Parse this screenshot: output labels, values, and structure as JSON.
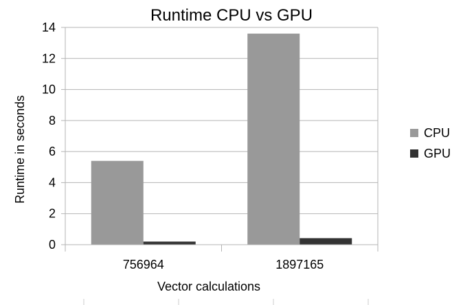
{
  "chart_data": {
    "type": "bar",
    "title": "Runtime CPU vs GPU",
    "xlabel": "Vector calculations",
    "ylabel": "Runtime in seconds",
    "categories": [
      "756964",
      "1897165"
    ],
    "series": [
      {
        "name": "CPU",
        "values": [
          5.4,
          13.6
        ],
        "color": "#999999"
      },
      {
        "name": "GPU",
        "values": [
          0.2,
          0.42
        ],
        "color": "#333333"
      }
    ],
    "ylim": [
      0,
      14
    ],
    "yticks": [
      0,
      2,
      4,
      6,
      8,
      10,
      12,
      14
    ],
    "grid": true,
    "legend_position": "right"
  }
}
